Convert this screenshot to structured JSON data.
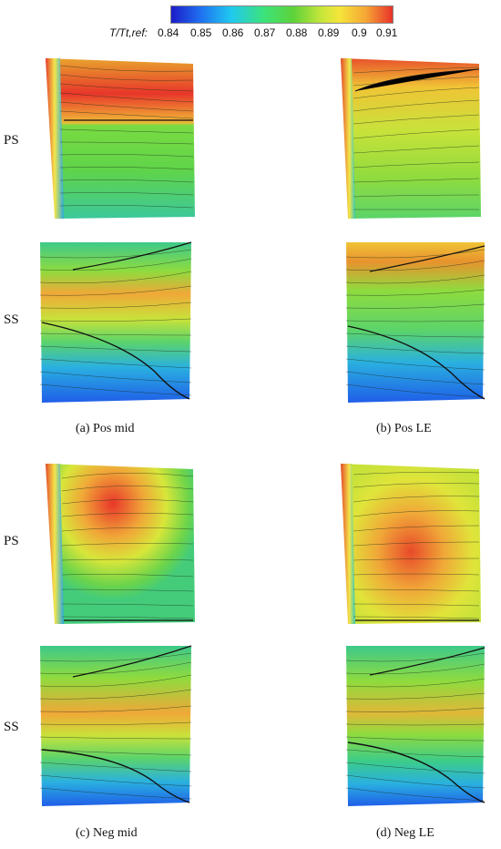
{
  "colorbar": {
    "title": "T/Tt,ref:",
    "ticks": [
      "0.84",
      "0.85",
      "0.86",
      "0.87",
      "0.88",
      "0.89",
      "0.9",
      "0.91"
    ]
  },
  "side_labels": {
    "ps1": "PS",
    "ss1": "SS",
    "ps2": "PS",
    "ss2": "SS"
  },
  "captions": {
    "a": "(a) Pos mid",
    "b": "(b) Pos LE",
    "c": "(c) Neg mid",
    "d": "(d) Neg LE"
  }
}
